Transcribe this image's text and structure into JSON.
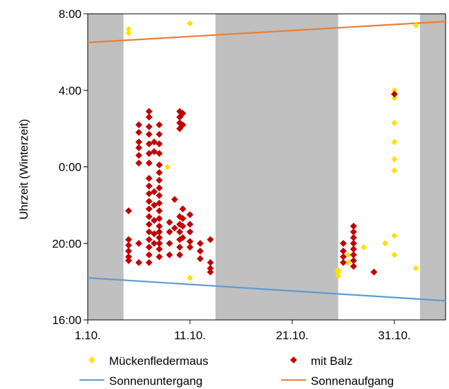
{
  "chart_data": {
    "type": "scatter",
    "title": "",
    "xlabel": "",
    "ylabel": "Uhrzeit (Winterzeit)",
    "x_axis": {
      "ticks": [
        {
          "value": 1,
          "label": "1.10."
        },
        {
          "value": 11,
          "label": "11.10."
        },
        {
          "value": 21,
          "label": "21.10."
        },
        {
          "value": 31,
          "label": "31.10."
        }
      ],
      "range": [
        1,
        36
      ]
    },
    "y_axis": {
      "note": "hours after 16:00, wrapping midnight",
      "ticks": [
        {
          "value": 0,
          "label": "16:00"
        },
        {
          "value": 4,
          "label": "20:00"
        },
        {
          "value": 8,
          "label": "0:00"
        },
        {
          "value": 12,
          "label": "4:00"
        },
        {
          "value": 16,
          "label": "8:00"
        }
      ],
      "range": [
        0,
        16
      ]
    },
    "grey_bands": [
      [
        1,
        4.5
      ],
      [
        13.5,
        25.5
      ],
      [
        33.5,
        36
      ]
    ],
    "series": [
      {
        "name": "Mückenfledermaus",
        "color": "#FFE100",
        "marker": "diamond",
        "points": [
          [
            5,
            15.2
          ],
          [
            5,
            15.0
          ],
          [
            8.8,
            8.0
          ],
          [
            11,
            15.5
          ],
          [
            11,
            2.2
          ],
          [
            25.5,
            2.5
          ],
          [
            25.5,
            2.3
          ],
          [
            25.5,
            2.6
          ],
          [
            26.5,
            3.4
          ],
          [
            26.5,
            3.0
          ],
          [
            28,
            3.8
          ],
          [
            30.1,
            4.0
          ],
          [
            31,
            12.0
          ],
          [
            31,
            11.6
          ],
          [
            31,
            10.3
          ],
          [
            31,
            9.3
          ],
          [
            31,
            8.4
          ],
          [
            31,
            7.8
          ],
          [
            31,
            4.4
          ],
          [
            31,
            3.4
          ],
          [
            33.1,
            15.4
          ],
          [
            33.1,
            2.7
          ]
        ]
      },
      {
        "name": "mit Balz",
        "color": "#C00000",
        "marker": "diamond",
        "points": [
          [
            5,
            5.7
          ],
          [
            5,
            4.2
          ],
          [
            5,
            3.9
          ],
          [
            5,
            3.6
          ],
          [
            5,
            3.3
          ],
          [
            5,
            3.1
          ],
          [
            6,
            10.2
          ],
          [
            6,
            9.8
          ],
          [
            6,
            9.3
          ],
          [
            6,
            9.0
          ],
          [
            6,
            8.6
          ],
          [
            6,
            8.2
          ],
          [
            6,
            4.0
          ],
          [
            6,
            3.0
          ],
          [
            7,
            10.9
          ],
          [
            7,
            10.6
          ],
          [
            7,
            10.1
          ],
          [
            7,
            9.7
          ],
          [
            7,
            9.2
          ],
          [
            7,
            8.7
          ],
          [
            7,
            8.2
          ],
          [
            7,
            7.4
          ],
          [
            7,
            7.0
          ],
          [
            7,
            6.6
          ],
          [
            7,
            6.2
          ],
          [
            7,
            5.8
          ],
          [
            7,
            5.4
          ],
          [
            7,
            5.0
          ],
          [
            7,
            4.6
          ],
          [
            7,
            4.2
          ],
          [
            7,
            3.8
          ],
          [
            7,
            3.4
          ],
          [
            7,
            3.0
          ],
          [
            7.5,
            9.3
          ],
          [
            7.5,
            8.8
          ],
          [
            7.5,
            6.7
          ],
          [
            7.5,
            6.0
          ],
          [
            7.5,
            5.2
          ],
          [
            7.5,
            4.5
          ],
          [
            7.5,
            4.0
          ],
          [
            8,
            10.2
          ],
          [
            8,
            9.7
          ],
          [
            8,
            9.2
          ],
          [
            8,
            8.7
          ],
          [
            8,
            8.1
          ],
          [
            8,
            7.7
          ],
          [
            8,
            7.3
          ],
          [
            8,
            6.9
          ],
          [
            8,
            6.5
          ],
          [
            8,
            6.1
          ],
          [
            8,
            5.7
          ],
          [
            8,
            5.3
          ],
          [
            8,
            4.9
          ],
          [
            8,
            4.6
          ],
          [
            8,
            4.3
          ],
          [
            8,
            4.0
          ],
          [
            8,
            3.7
          ],
          [
            8,
            3.3
          ],
          [
            9,
            5.1
          ],
          [
            9,
            4.6
          ],
          [
            9,
            4.0
          ],
          [
            9,
            3.4
          ],
          [
            9.5,
            6.3
          ],
          [
            9.5,
            4.8
          ],
          [
            10,
            10.9
          ],
          [
            10,
            10.6
          ],
          [
            10,
            10.3
          ],
          [
            10,
            10.0
          ],
          [
            10,
            5.4
          ],
          [
            10,
            5.0
          ],
          [
            10,
            4.6
          ],
          [
            10,
            4.2
          ],
          [
            10,
            3.8
          ],
          [
            10,
            3.4
          ],
          [
            10.3,
            10.8
          ],
          [
            10.3,
            10.2
          ],
          [
            10.3,
            5.8
          ],
          [
            10.3,
            5.3
          ],
          [
            10.3,
            4.9
          ],
          [
            10.3,
            4.3
          ],
          [
            11,
            5.5
          ],
          [
            11,
            5.0
          ],
          [
            11,
            4.6
          ],
          [
            11,
            4.1
          ],
          [
            11,
            3.8
          ],
          [
            12,
            4.0
          ],
          [
            12,
            3.6
          ],
          [
            12,
            3.2
          ],
          [
            13,
            4.2
          ],
          [
            13,
            3.0
          ],
          [
            13,
            2.7
          ],
          [
            13,
            2.5
          ],
          [
            26,
            4.0
          ],
          [
            26,
            3.6
          ],
          [
            26,
            3.3
          ],
          [
            26,
            3.0
          ],
          [
            27,
            4.9
          ],
          [
            27,
            4.6
          ],
          [
            27,
            4.3
          ],
          [
            27,
            4.0
          ],
          [
            27,
            3.7
          ],
          [
            27,
            3.4
          ],
          [
            27,
            3.1
          ],
          [
            27,
            2.8
          ],
          [
            29,
            2.5
          ],
          [
            31,
            11.8
          ]
        ]
      }
    ],
    "lines": [
      {
        "name": "Sonnenuntergang",
        "color": "#5B9BD5",
        "points": [
          [
            1,
            2.2
          ],
          [
            36,
            1.0
          ]
        ]
      },
      {
        "name": "Sonnenaufgang",
        "color": "#ED7D31",
        "points": [
          [
            1,
            14.5
          ],
          [
            36,
            15.6
          ]
        ]
      }
    ]
  }
}
